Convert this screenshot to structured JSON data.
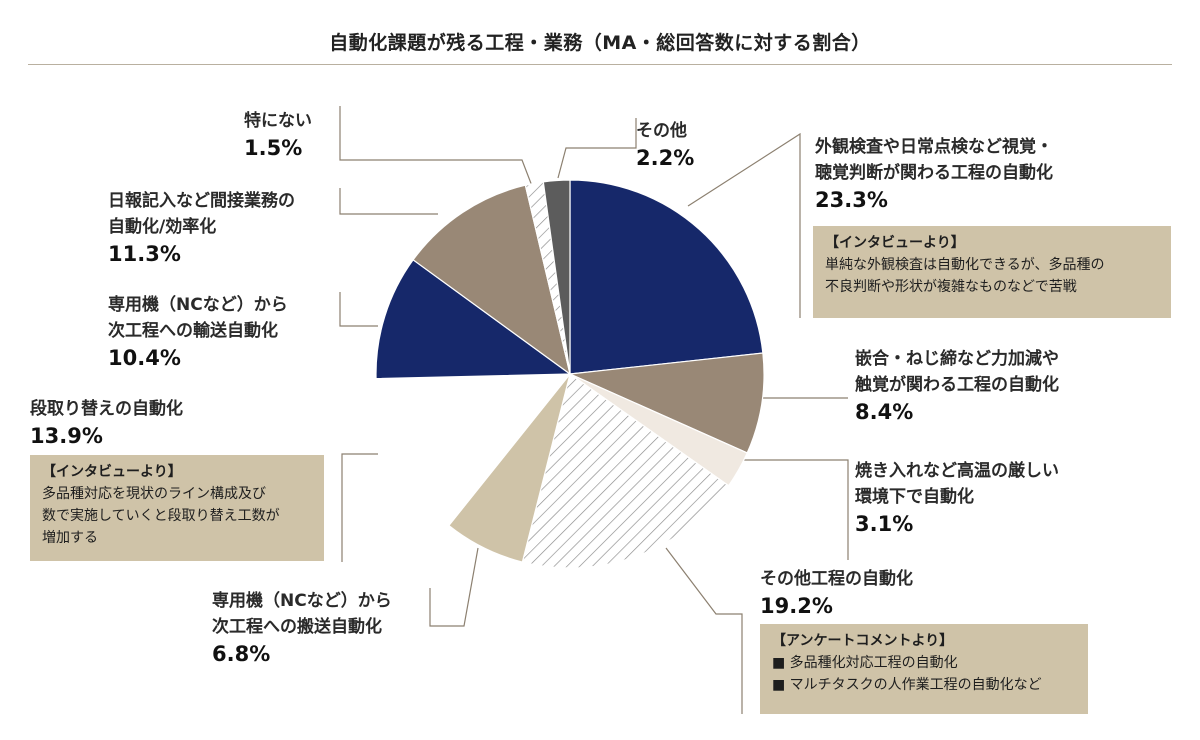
{
  "chart_data": {
    "type": "pie",
    "title": "自動化課題が残る工程・業務（MA・総回答数に対する割合）",
    "slices": [
      {
        "label": "外観検査や日常点検など視覚・聴覚判断が関わる工程の自動化",
        "label_lines": [
          "外観検査や日常点検など視覚・",
          "聴覚判断が関わる工程の自動化"
        ],
        "value_text": "23.3%",
        "value": 23.3,
        "color": "#16286a",
        "pattern": false
      },
      {
        "label": "嵌合・ねじ締など力加減や触覚が関わる工程の自動化",
        "label_lines": [
          "嵌合・ねじ締など力加減や",
          "触覚が関わる工程の自動化"
        ],
        "value_text": "8.4%",
        "value": 8.4,
        "color": "#998876",
        "pattern": false
      },
      {
        "label": "焼き入れなど高温の厳しい環境下で自動化",
        "label_lines": [
          "焼き入れなど高温の厳しい",
          "環境下で自動化"
        ],
        "value_text": "3.1%",
        "value": 3.1,
        "color": "#f0e9e1",
        "pattern": false
      },
      {
        "label": "その他工程の自動化",
        "label_lines": [
          "その他工程の自動化"
        ],
        "value_text": "19.2%",
        "value": 19.2,
        "color": "#ffffff",
        "pattern": true
      },
      {
        "label": "専用機（NCなど）から次工程への搬送自動化",
        "label_lines": [
          "専用機（NCなど）から",
          "次工程への搬送自動化"
        ],
        "value_text": "6.8%",
        "value": 6.8,
        "color": "#cfc3a8",
        "pattern": false
      },
      {
        "label": "段取り替えの自動化",
        "label_lines": [
          "段取り替えの自動化"
        ],
        "value_text": "13.9%",
        "value": 13.9,
        "color": "#ffffff",
        "pattern": false
      },
      {
        "label": "専用機（NCなど）から次工程への輸送自動化",
        "label_lines": [
          "専用機（NCなど）から",
          "次工程への輸送自動化"
        ],
        "value_text": "10.4%",
        "value": 10.4,
        "color": "#16286a",
        "pattern": false
      },
      {
        "label": "日報記入など間接業務の自動化/効率化",
        "label_lines": [
          "日報記入など間接業務の",
          "自動化/効率化"
        ],
        "value_text": "11.3%",
        "value": 11.3,
        "color": "#998876",
        "pattern": false
      },
      {
        "label": "特にない",
        "label_lines": [
          "特にない"
        ],
        "value_text": "1.5%",
        "value": 1.5,
        "color": "#ffffff",
        "pattern": true
      },
      {
        "label": "その他",
        "label_lines": [
          "その他"
        ],
        "value_text": "2.2%",
        "value": 2.2,
        "color": "#5c5c5c",
        "pattern": false
      }
    ],
    "notes": [
      {
        "heading": "【インタビューより】",
        "lines": [
          "単純な外観検査は自動化できるが、多品種の",
          "不良判断や形状が複雑なものなどで苦戦"
        ]
      },
      {
        "heading": "【インタビューより】",
        "lines": [
          "多品種対応を現状のライン構成及び",
          "数で実施していくと段取り替え工数が",
          "増加する"
        ]
      },
      {
        "heading": "【アンケートコメントより】",
        "lines": [
          "■ 多品種化対応工程の自動化",
          "■ マルチタスクの人作業工程の自動化など"
        ]
      }
    ]
  }
}
